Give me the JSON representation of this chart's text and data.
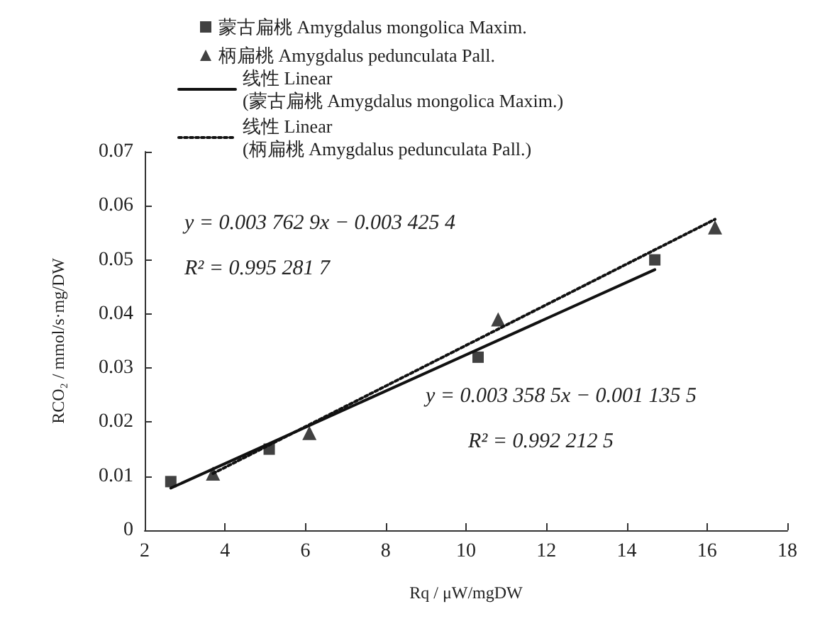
{
  "chart_data": {
    "type": "scatter",
    "xlabel": "Rq / μW/mgDW",
    "ylabel": "RCO₂ / mmol/s·mg/DW",
    "xlim": [
      2,
      18
    ],
    "xticks": [
      2,
      4,
      6,
      8,
      10,
      12,
      14,
      16,
      18
    ],
    "ylim": [
      0,
      0.07
    ],
    "yticks": [
      0,
      0.01,
      0.02,
      0.03,
      0.04,
      0.05,
      0.06,
      0.07
    ],
    "grid": false,
    "legend": "top left",
    "series": [
      {
        "name": "蒙古扁桃 Amygdalus mongolica Maxim.",
        "marker": "square",
        "color": "#111111",
        "x": [
          2.65,
          5.1,
          10.3,
          14.7
        ],
        "values": [
          0.009,
          0.015,
          0.032,
          0.05
        ]
      },
      {
        "name": "柄扁桃 Amygdalus pedunculata Pall.",
        "marker": "triangle",
        "color": "#111111",
        "x": [
          3.7,
          6.1,
          10.8,
          16.2
        ],
        "values": [
          0.0105,
          0.018,
          0.039,
          0.056
        ]
      },
      {
        "name": "线性 Linear\n(蒙古扁桃 Amygdalus mongolica Maxim.)",
        "type": "line",
        "marker": "none",
        "line_style": "solid",
        "color": "#111111",
        "x": [
          2.65,
          14.7
        ],
        "values": [
          0.0078,
          0.0482
        ]
      },
      {
        "name": "线性 Linear\n(柄扁桃 Amygdalus pedunculata Pall.)",
        "type": "line",
        "marker": "none",
        "line_style": "dotted",
        "color": "#111111",
        "x": [
          3.7,
          16.2
        ],
        "values": [
          0.0105,
          0.0575
        ]
      }
    ],
    "annotations": [
      "y = 0.003 762 9x − 0.003 425 4",
      "R² = 0.995 281 7",
      "y = 0.003 358 5x − 0.001 135 5",
      "R² = 0.992 212 5"
    ]
  }
}
